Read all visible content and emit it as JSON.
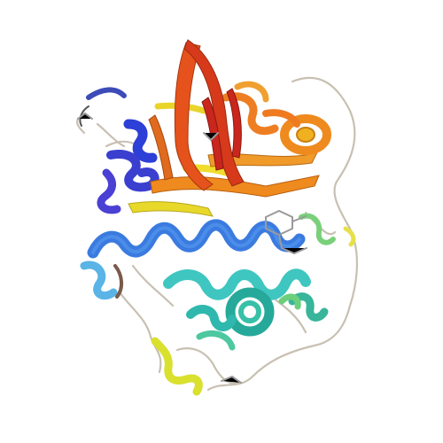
{
  "scene": {
    "subject": "protein-ribbon-structure",
    "background_color": "#ffffff",
    "palette": {
      "n_terminus_blue": "#2c3fd6",
      "helix_blue": "#3b7be0",
      "light_blue": "#5ab4e6",
      "cyan": "#3fc6c0",
      "teal": "#38b59a",
      "green": "#7ad07a",
      "yellow_green": "#c9de3a",
      "yellow": "#f0dc2c",
      "orange": "#ef8a1e",
      "orange_red": "#e5521b",
      "red": "#c9261d",
      "loop_gray": "#c8c0b2",
      "ligand_gray": "#9a9a9a"
    }
  }
}
